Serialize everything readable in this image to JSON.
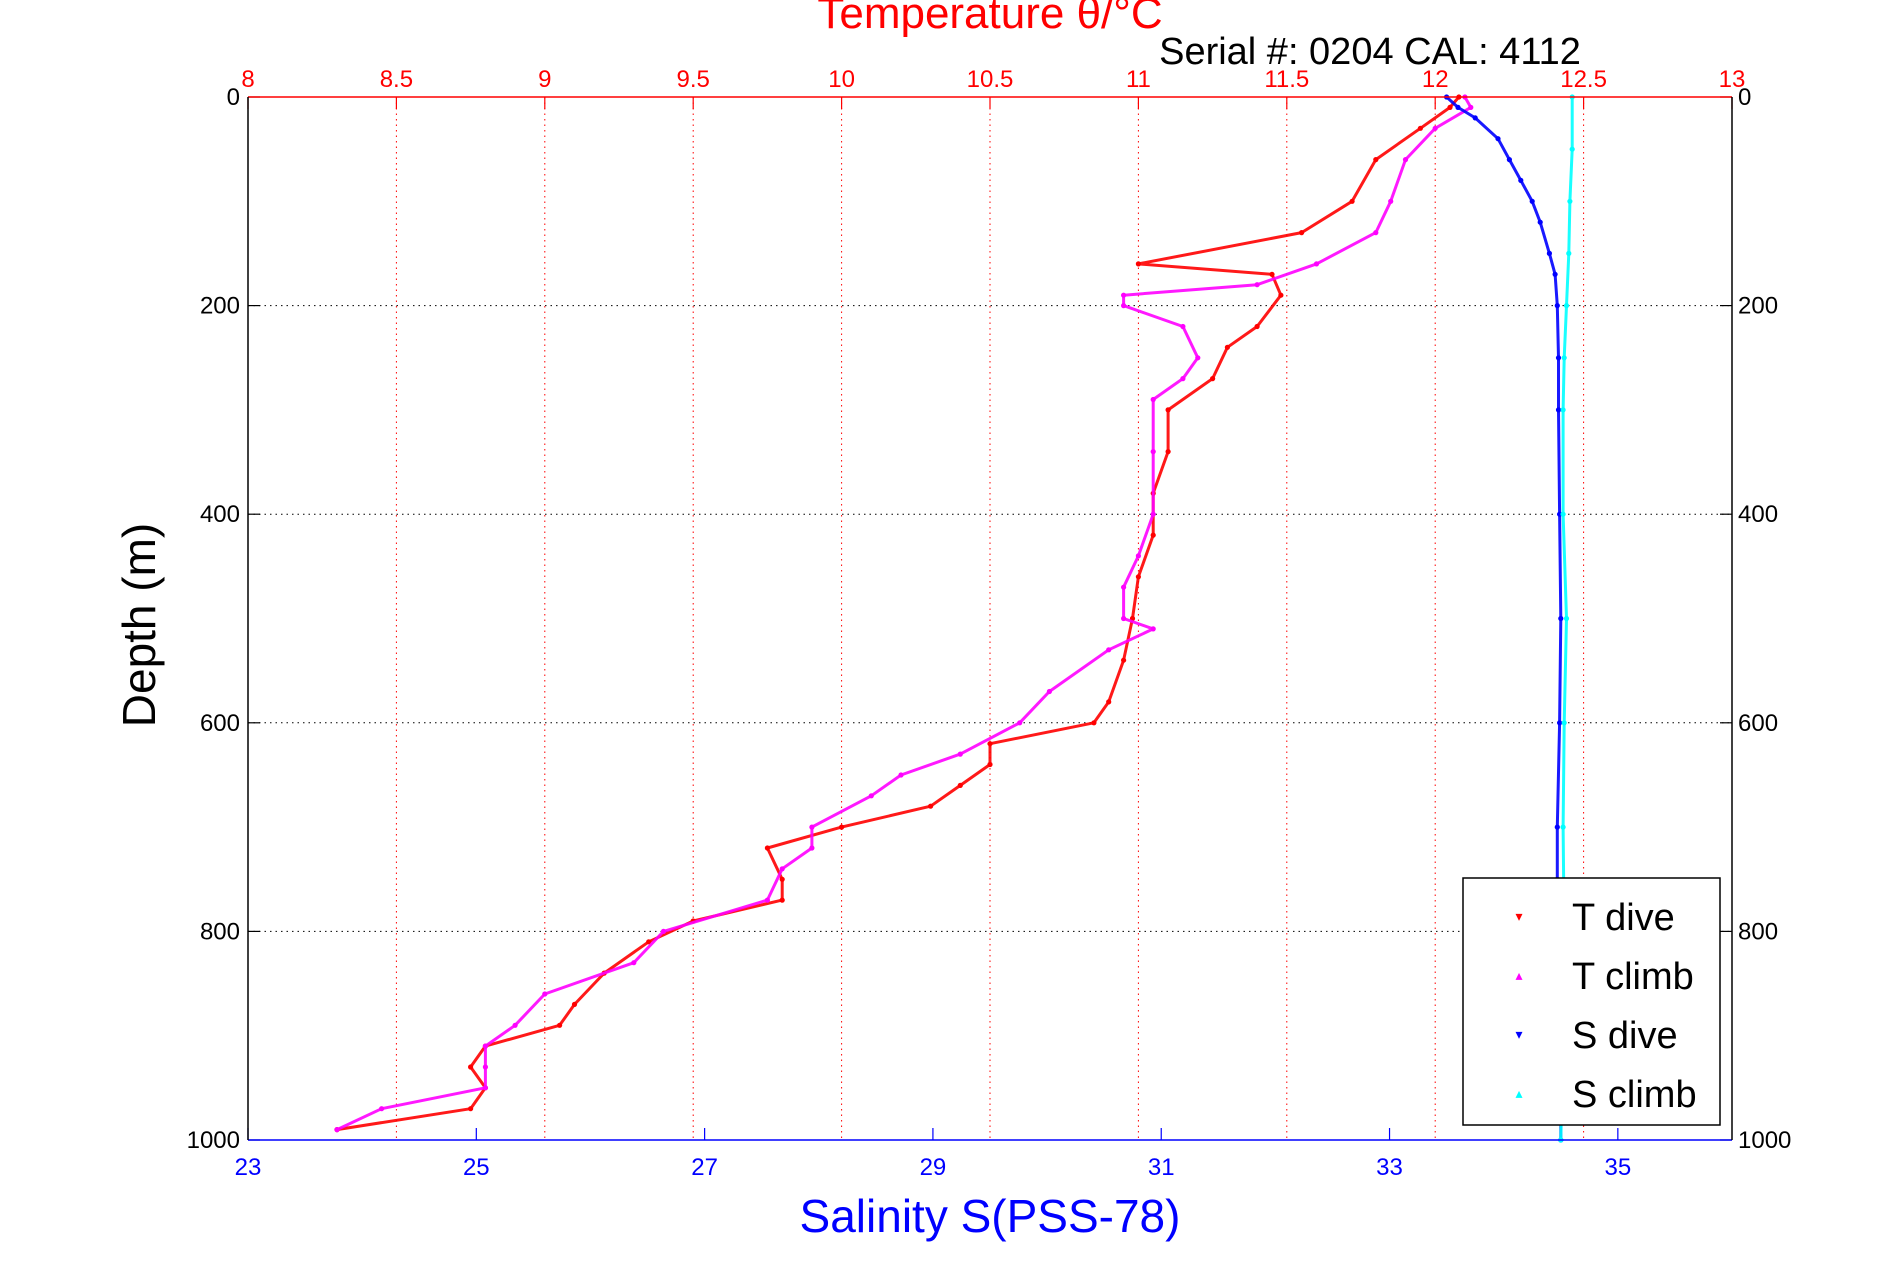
{
  "chart_data": {
    "type": "scatter",
    "title": "Temperature θ/°C",
    "subtitle": "Serial #: 0204  CAL: 4112",
    "xlabel": "Salinity S(PSS-78)",
    "ylabel": "Depth (m)",
    "top_xlabel": "Temperature θ/°C",
    "ylim": [
      0,
      1000
    ],
    "y_reversed": true,
    "xlim_salinity": [
      23,
      36
    ],
    "xlim_temperature": [
      8,
      13
    ],
    "xticks_salinity": [
      "23",
      "25",
      "27",
      "29",
      "31",
      "33",
      "35"
    ],
    "xticks_temperature": [
      "8",
      "8.5",
      "9",
      "9.5",
      "10",
      "10.5",
      "11",
      "11.5",
      "12",
      "12.5",
      "13"
    ],
    "yticks": [
      "0",
      "200",
      "400",
      "600",
      "800",
      "1000"
    ],
    "grid": true,
    "legend_position": "bottom-right",
    "colors": {
      "temperature_axis": "#ff0000",
      "salinity_axis": "#0000ff",
      "t_dive": "#ff0000",
      "t_climb": "#ff00ff",
      "s_dive": "#0000ff",
      "s_climb": "#00ffff",
      "grid": "#000000"
    },
    "series": [
      {
        "name": "T dive",
        "axis": "temperature",
        "depth": [
          0,
          10,
          30,
          60,
          100,
          130,
          160,
          170,
          190,
          220,
          240,
          270,
          300,
          340,
          380,
          420,
          460,
          500,
          540,
          580,
          600,
          620,
          640,
          660,
          680,
          700,
          720,
          750,
          770,
          790,
          810,
          840,
          870,
          890,
          910,
          930,
          950,
          970,
          990
        ],
        "values": [
          12.08,
          12.05,
          11.95,
          11.8,
          11.72,
          11.55,
          11.0,
          11.45,
          11.48,
          11.4,
          11.3,
          11.25,
          11.1,
          11.1,
          11.05,
          11.05,
          11.0,
          10.98,
          10.95,
          10.9,
          10.85,
          10.5,
          10.5,
          10.4,
          10.3,
          10.0,
          9.75,
          9.8,
          9.8,
          9.5,
          9.35,
          9.2,
          9.1,
          9.05,
          8.8,
          8.75,
          8.8,
          8.75,
          8.3
        ]
      },
      {
        "name": "T climb",
        "axis": "temperature",
        "depth": [
          0,
          10,
          30,
          60,
          100,
          130,
          160,
          180,
          190,
          200,
          220,
          250,
          270,
          290,
          340,
          400,
          440,
          470,
          500,
          510,
          530,
          570,
          600,
          630,
          650,
          670,
          700,
          720,
          740,
          770,
          800,
          830,
          860,
          890,
          910,
          930,
          950,
          970,
          990
        ],
        "values": [
          12.1,
          12.12,
          12.0,
          11.9,
          11.85,
          11.8,
          11.6,
          11.4,
          10.95,
          10.95,
          11.15,
          11.2,
          11.15,
          11.05,
          11.05,
          11.05,
          11.0,
          10.95,
          10.95,
          11.05,
          10.9,
          10.7,
          10.6,
          10.4,
          10.2,
          10.1,
          9.9,
          9.9,
          9.8,
          9.75,
          9.4,
          9.3,
          9.0,
          8.9,
          8.8,
          8.8,
          8.8,
          8.45,
          8.3
        ]
      },
      {
        "name": "S dive",
        "axis": "salinity",
        "depth": [
          0,
          10,
          20,
          40,
          60,
          80,
          100,
          120,
          150,
          170,
          200,
          250,
          300,
          400,
          500,
          600,
          700,
          750,
          800,
          850,
          900,
          950,
          1000
        ],
        "values": [
          33.5,
          33.6,
          33.75,
          33.95,
          34.05,
          34.15,
          34.25,
          34.32,
          34.4,
          34.45,
          34.47,
          34.48,
          34.48,
          34.49,
          34.5,
          34.49,
          34.47,
          34.47,
          34.48,
          34.49,
          34.5,
          34.5,
          34.5
        ]
      },
      {
        "name": "S climb",
        "axis": "salinity",
        "depth": [
          0,
          50,
          100,
          150,
          200,
          250,
          300,
          400,
          500,
          600,
          700,
          800,
          900,
          1000
        ],
        "values": [
          34.6,
          34.6,
          34.58,
          34.57,
          34.55,
          34.53,
          34.52,
          34.52,
          34.55,
          34.53,
          34.52,
          34.53,
          34.52,
          34.5
        ]
      }
    ]
  }
}
